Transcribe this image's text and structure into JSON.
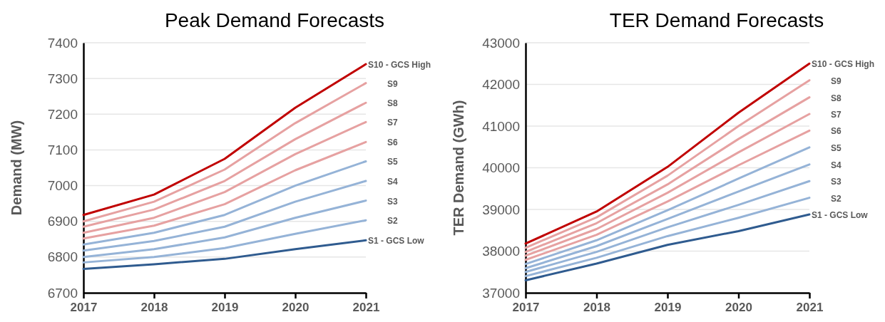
{
  "chart_data": [
    {
      "type": "line",
      "title": "Peak Demand Forecasts",
      "ylabel": "Demand (MW)",
      "x": [
        2017,
        2018,
        2019,
        2020,
        2021
      ],
      "xlim": [
        2017,
        2021
      ],
      "xticks": [
        2017,
        2018,
        2019,
        2020,
        2021
      ],
      "ylim": [
        6700,
        7400
      ],
      "yticks": [
        6700,
        6800,
        6900,
        7000,
        7100,
        7200,
        7300,
        7400
      ],
      "grid": "y",
      "series": [
        {
          "name": "S1 - GCS Low",
          "color": "#2f5b8f",
          "values": [
            6767,
            6780,
            6795,
            6822,
            6847
          ]
        },
        {
          "name": "S2",
          "color": "#95b3d7",
          "values": [
            6785,
            6800,
            6825,
            6865,
            6903
          ]
        },
        {
          "name": "S3",
          "color": "#95b3d7",
          "values": [
            6800,
            6822,
            6855,
            6910,
            6958
          ]
        },
        {
          "name": "S4",
          "color": "#95b3d7",
          "values": [
            6818,
            6845,
            6885,
            6955,
            7013
          ]
        },
        {
          "name": "S5",
          "color": "#95b3d7",
          "values": [
            6835,
            6868,
            6918,
            7000,
            7068
          ]
        },
        {
          "name": "S6",
          "color": "#e6a1a1",
          "values": [
            6852,
            6888,
            6948,
            7043,
            7122
          ]
        },
        {
          "name": "S7",
          "color": "#e6a1a1",
          "values": [
            6868,
            6910,
            6982,
            7088,
            7178
          ]
        },
        {
          "name": "S8",
          "color": "#e6a1a1",
          "values": [
            6885,
            6933,
            7013,
            7130,
            7232
          ]
        },
        {
          "name": "S9",
          "color": "#e6a1a1",
          "values": [
            6900,
            6955,
            7045,
            7175,
            7287
          ]
        },
        {
          "name": "S10 - GCS High",
          "color": "#c00000",
          "values": [
            6918,
            6975,
            7075,
            7218,
            7340
          ]
        }
      ]
    },
    {
      "type": "line",
      "title": "TER Demand Forecasts",
      "ylabel": "TER Demand (GWh)",
      "x": [
        2017,
        2018,
        2019,
        2020,
        2021
      ],
      "xlim": [
        2017,
        2021
      ],
      "xticks": [
        2017,
        2018,
        2019,
        2020,
        2021
      ],
      "ylim": [
        37000,
        43000
      ],
      "yticks": [
        37000,
        38000,
        39000,
        40000,
        41000,
        42000,
        43000
      ],
      "grid": "y",
      "series": [
        {
          "name": "S1 - GCS Low",
          "color": "#2f5b8f",
          "values": [
            37300,
            37700,
            38150,
            38480,
            38880
          ]
        },
        {
          "name": "S2",
          "color": "#95b3d7",
          "values": [
            37400,
            37840,
            38360,
            38800,
            39280
          ]
        },
        {
          "name": "S3",
          "color": "#95b3d7",
          "values": [
            37500,
            37980,
            38570,
            39110,
            39680
          ]
        },
        {
          "name": "S4",
          "color": "#95b3d7",
          "values": [
            37590,
            38120,
            38770,
            39430,
            40080
          ]
        },
        {
          "name": "S5",
          "color": "#95b3d7",
          "values": [
            37690,
            38260,
            38980,
            39740,
            40490
          ]
        },
        {
          "name": "S6",
          "color": "#e6a1a1",
          "values": [
            37790,
            38390,
            39190,
            40060,
            40890
          ]
        },
        {
          "name": "S7",
          "color": "#e6a1a1",
          "values": [
            37890,
            38530,
            39400,
            40370,
            41290
          ]
        },
        {
          "name": "S8",
          "color": "#e6a1a1",
          "values": [
            37980,
            38670,
            39600,
            40690,
            41690
          ]
        },
        {
          "name": "S9",
          "color": "#e6a1a1",
          "values": [
            38080,
            38810,
            39810,
            41000,
            42100
          ]
        },
        {
          "name": "S10 - GCS High",
          "color": "#c00000",
          "values": [
            38180,
            38950,
            40020,
            41320,
            42500
          ]
        }
      ]
    }
  ]
}
